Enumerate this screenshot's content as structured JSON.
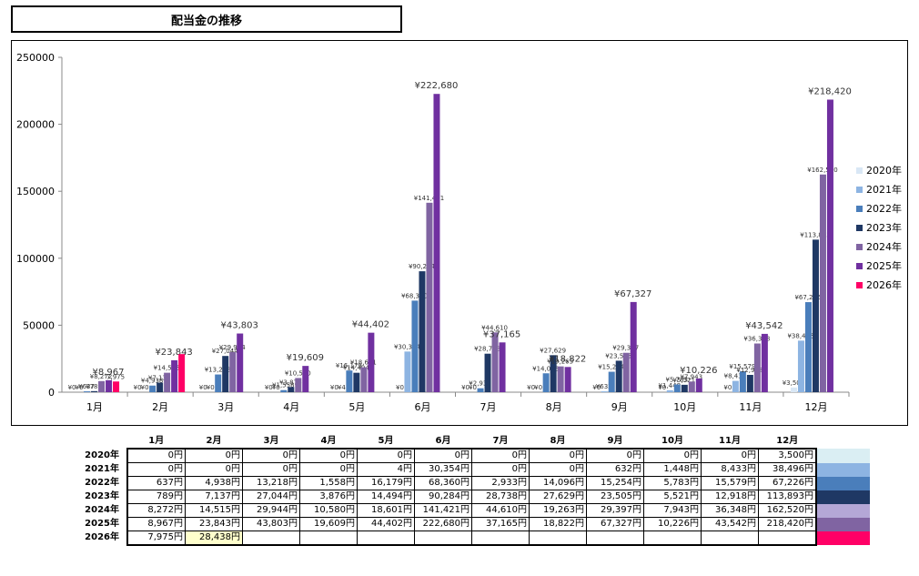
{
  "title": "配当金の推移",
  "chart_data": {
    "type": "bar",
    "categories": [
      "1月",
      "2月",
      "3月",
      "4月",
      "5月",
      "6月",
      "7月",
      "8月",
      "9月",
      "10月",
      "11月",
      "12月"
    ],
    "ylim": [
      0,
      250000
    ],
    "yticks": [
      "0",
      "50000",
      "100000",
      "150000",
      "200000",
      "250000"
    ],
    "legend_position": "right",
    "grid": false,
    "series": [
      {
        "name": "2020年",
        "color": "#d9e7f5",
        "values": [
          0,
          0,
          0,
          0,
          0,
          0,
          0,
          0,
          0,
          0,
          0,
          3500
        ],
        "labels": [
          "¥0",
          "¥0",
          "¥0",
          "¥0",
          "¥0",
          "¥0",
          "¥0",
          "¥0",
          "¥0",
          "¥0",
          "¥0",
          "¥3,500"
        ]
      },
      {
        "name": "2021年",
        "color": "#8db4e2",
        "values": [
          0,
          0,
          0,
          0,
          4,
          30354,
          0,
          0,
          632,
          1448,
          8433,
          38496
        ],
        "labels": [
          "¥0",
          "¥0",
          "¥0",
          "¥0",
          "¥4",
          "¥30,354",
          "¥0",
          "¥0",
          "¥632",
          "¥1,448",
          "¥8,433",
          "¥38,496"
        ]
      },
      {
        "name": "2022年",
        "color": "#4a7ebb",
        "values": [
          637,
          4938,
          13218,
          1558,
          16179,
          68360,
          2933,
          14096,
          15254,
          5783,
          15579,
          67226
        ],
        "labels": [
          "¥637",
          "¥4,938",
          "¥13,218",
          "¥1,558",
          "¥16,179",
          "¥68,360",
          "¥2,933",
          "¥14,096",
          "¥15,254",
          "¥5,783",
          "¥15,579",
          "¥67,226"
        ]
      },
      {
        "name": "2023年",
        "color": "#1f3864",
        "values": [
          789,
          7137,
          27044,
          3876,
          14494,
          90284,
          28738,
          27629,
          23505,
          5521,
          12918,
          113893
        ],
        "labels": [
          "¥789",
          "¥7,137",
          "¥27,044",
          "¥3,876",
          "¥14,494",
          "¥90,284",
          "¥28,738",
          "¥27,629",
          "¥23,505",
          "¥5,521",
          "¥12,918",
          "¥113,893"
        ]
      },
      {
        "name": "2024年",
        "color": "#8064a2",
        "values": [
          8272,
          14515,
          29944,
          10580,
          18601,
          141421,
          44610,
          19263,
          29397,
          7943,
          36348,
          162520
        ],
        "labels": [
          "¥8,272",
          "¥14,515",
          "¥29,944",
          "¥10,580",
          "¥18,601",
          "¥141,421",
          "¥44,610",
          "¥19,263",
          "¥29,397",
          "¥7,943",
          "¥36,348",
          "¥162,520"
        ]
      },
      {
        "name": "2025年",
        "color": "#7030a0",
        "values": [
          8967,
          23843,
          43803,
          19609,
          44402,
          222680,
          37165,
          18822,
          67327,
          10226,
          43542,
          218420
        ],
        "labels": [
          "¥8,967",
          "¥23,843",
          "¥43,803",
          "¥19,609",
          "¥44,402",
          "¥222,680",
          "¥37,165",
          "¥18,822",
          "¥67,327",
          "¥10,226",
          "¥43,542",
          "¥218,420"
        ]
      },
      {
        "name": "2026年",
        "color": "#ff0066",
        "values": [
          7975,
          28438,
          null,
          null,
          null,
          null,
          null,
          null,
          null,
          null,
          null,
          null
        ],
        "labels": [
          "7,975",
          "",
          null,
          null,
          null,
          null,
          null,
          null,
          null,
          null,
          null,
          null
        ]
      }
    ]
  },
  "table": {
    "columns": [
      "1月",
      "2月",
      "3月",
      "4月",
      "5月",
      "6月",
      "7月",
      "8月",
      "9月",
      "10月",
      "11月",
      "12月"
    ],
    "rows": [
      {
        "label": "2020年",
        "color": "#daeef3",
        "cells": [
          "0円",
          "0円",
          "0円",
          "0円",
          "0円",
          "0円",
          "0円",
          "0円",
          "0円",
          "0円",
          "0円",
          "3,500円"
        ]
      },
      {
        "label": "2021年",
        "color": "#8db4e2",
        "cells": [
          "0円",
          "0円",
          "0円",
          "0円",
          "4円",
          "30,354円",
          "0円",
          "0円",
          "632円",
          "1,448円",
          "8,433円",
          "38,496円"
        ]
      },
      {
        "label": "2022年",
        "color": "#4a7ebb",
        "cells": [
          "637円",
          "4,938円",
          "13,218円",
          "1,558円",
          "16,179円",
          "68,360円",
          "2,933円",
          "14,096円",
          "15,254円",
          "5,783円",
          "15,579円",
          "67,226円"
        ]
      },
      {
        "label": "2023年",
        "color": "#1f3864",
        "cells": [
          "789円",
          "7,137円",
          "27,044円",
          "3,876円",
          "14,494円",
          "90,284円",
          "28,738円",
          "27,629円",
          "23,505円",
          "5,521円",
          "12,918円",
          "113,893円"
        ]
      },
      {
        "label": "2024年",
        "color": "#b4a7d6",
        "cells": [
          "8,272円",
          "14,515円",
          "29,944円",
          "10,580円",
          "18,601円",
          "141,421円",
          "44,610円",
          "19,263円",
          "29,397円",
          "7,943円",
          "36,348円",
          "162,520円"
        ]
      },
      {
        "label": "2025年",
        "color": "#8064a2",
        "cells": [
          "8,967円",
          "23,843円",
          "43,803円",
          "19,609円",
          "44,402円",
          "222,680円",
          "37,165円",
          "18,822円",
          "67,327円",
          "10,226円",
          "43,542円",
          "218,420円"
        ]
      },
      {
        "label": "2026年",
        "color": "#ff0066",
        "cells": [
          "7,975円",
          "28,438円",
          "",
          "",
          "",
          "",
          "",
          "",
          "",
          "",
          "",
          ""
        ]
      }
    ]
  }
}
